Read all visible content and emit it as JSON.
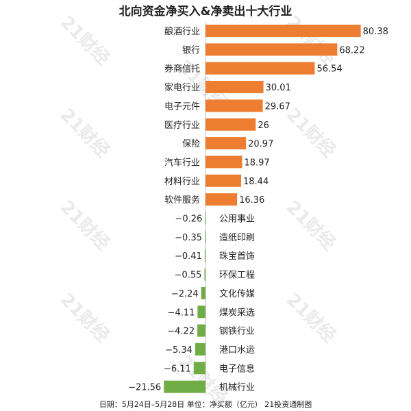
{
  "chart_data": {
    "type": "bar",
    "orientation": "horizontal",
    "title": "北向资金净买入&净卖出十大行业",
    "categories": [
      "酿酒行业",
      "银行",
      "券商信托",
      "家电行业",
      "电子元件",
      "医疗行业",
      "保险",
      "汽车行业",
      "材料行业",
      "软件服务",
      "公用事业",
      "造纸印刷",
      "珠宝首饰",
      "环保工程",
      "文化传媒",
      "煤炭采选",
      "钢铁行业",
      "港口水运",
      "电子信息",
      "机械行业"
    ],
    "values": [
      80.38,
      68.22,
      56.54,
      30.01,
      29.67,
      26,
      20.97,
      18.97,
      18.44,
      16.36,
      -0.26,
      -0.35,
      -0.41,
      -0.55,
      -2.24,
      -4.11,
      -4.22,
      -5.34,
      -6.11,
      -21.56
    ],
    "value_labels": [
      "80.38",
      "68.22",
      "56.54",
      "30.01",
      "29.67",
      "26",
      "20.97",
      "18.97",
      "18.44",
      "16.36",
      "−0.26",
      "−0.35",
      "−0.41",
      "−0.55",
      "−2.24",
      "−4.11",
      "−4.22",
      "−5.34",
      "−6.11",
      "−21.56"
    ],
    "colors": {
      "positive": "#ed7d31",
      "negative": "#70ad47"
    },
    "grid": false,
    "legend": "none"
  },
  "footer": "日期：5月24日–5月28日 单位：净买额（亿元） 21投资通制图",
  "watermark": "21财经"
}
